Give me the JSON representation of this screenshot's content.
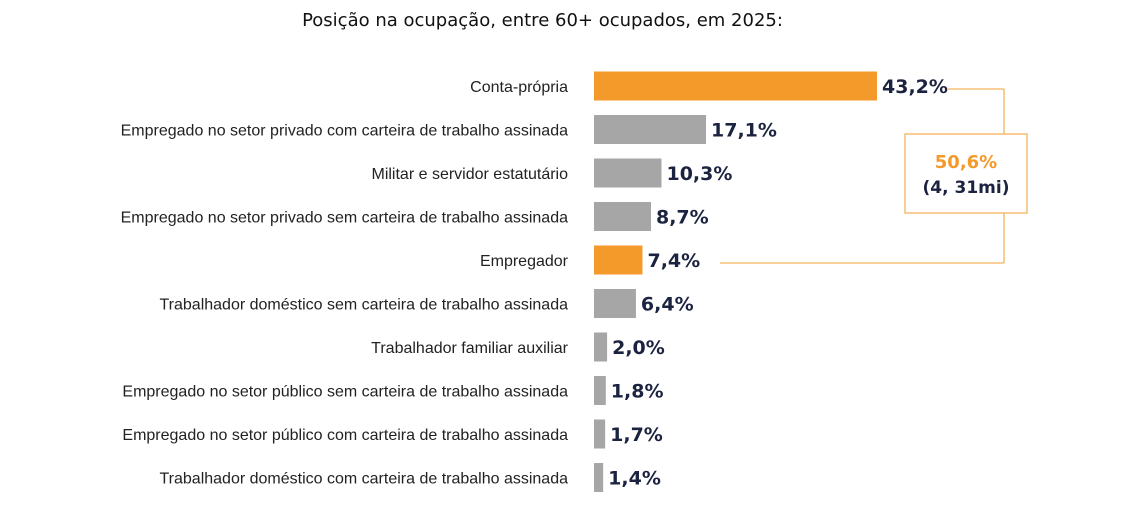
{
  "chart_data": {
    "type": "bar",
    "orientation": "horizontal",
    "title": "Posição na ocupação, entre 60+ ocupados, em 2025:",
    "categories": [
      "Conta-própria",
      "Empregado no setor privado com carteira de trabalho assinada",
      "Militar e servidor estatutário",
      "Empregado no setor privado sem carteira de trabalho assinada",
      "Empregador",
      "Trabalhador doméstico sem carteira de trabalho assinada",
      "Trabalhador familiar auxiliar",
      "Empregado no setor público sem carteira de trabalho assinada",
      "Empregado no setor público com carteira de trabalho assinada",
      "Trabalhador doméstico com carteira de trabalho assinada"
    ],
    "values": [
      43.2,
      17.1,
      10.3,
      8.7,
      7.4,
      6.4,
      2.0,
      1.8,
      1.7,
      1.4
    ],
    "value_labels": [
      "43,2%",
      "17,1%",
      "10,3%",
      "8,7%",
      "7,4%",
      "6,4%",
      "2,0%",
      "1,8%",
      "1,7%",
      "1,4%"
    ],
    "highlighted": [
      true,
      false,
      false,
      false,
      true,
      false,
      false,
      false,
      false,
      false
    ],
    "colors": {
      "highlight": "#f39a2b",
      "default": "#a6a6a6",
      "value_text": "#1c2340",
      "callout_border": "#f5b25e"
    },
    "xlim": [
      0,
      43.2
    ],
    "grid": false,
    "legend": "none",
    "callout": {
      "value": "50,6%",
      "subtext": "(4, 31mi)",
      "brackets_categories": [
        "Conta-própria",
        "Empregador"
      ]
    }
  }
}
